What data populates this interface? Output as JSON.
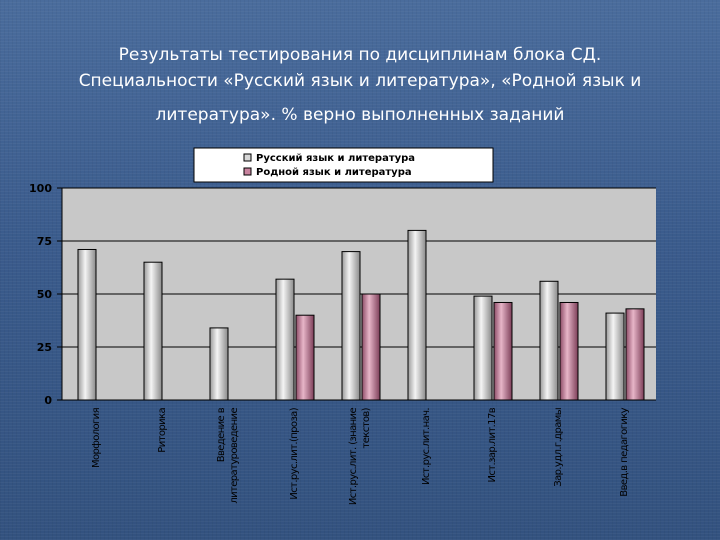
{
  "title": {
    "line1": "Результаты тестирования по дисциплинам блока СД.",
    "line2": "Специальности «Русский язык и литература», «Родной язык и",
    "line3": "литература». % верно выполненных заданий"
  },
  "chart_data": {
    "type": "bar",
    "ylim": [
      0,
      100
    ],
    "yticks": [
      "0",
      "25",
      "50",
      "75",
      "100"
    ],
    "grid": true,
    "legend_position": "top",
    "categories": [
      [
        "Морфология"
      ],
      [
        "Риторика"
      ],
      [
        "Введение в",
        "литературоведение"
      ],
      [
        "Ист.рус.лит.(проза)"
      ],
      [
        "Ист.рус.лит. (знание",
        "текстов)"
      ],
      [
        "Ист.рус.лит.нач."
      ],
      [
        "Ист.зар.лит.17в"
      ],
      [
        "Зар.удл.г.драмы"
      ],
      [
        "Введ.в педагогику"
      ]
    ],
    "series": [
      {
        "name": "Русский язык и литература",
        "color": "#c8c8c8",
        "values": [
          71,
          65,
          34,
          57,
          70,
          80,
          49,
          56,
          41
        ]
      },
      {
        "name": "Родной язык и литература",
        "color": "#c8839e",
        "values": [
          null,
          null,
          null,
          40,
          50,
          null,
          46,
          46,
          43
        ]
      }
    ]
  }
}
